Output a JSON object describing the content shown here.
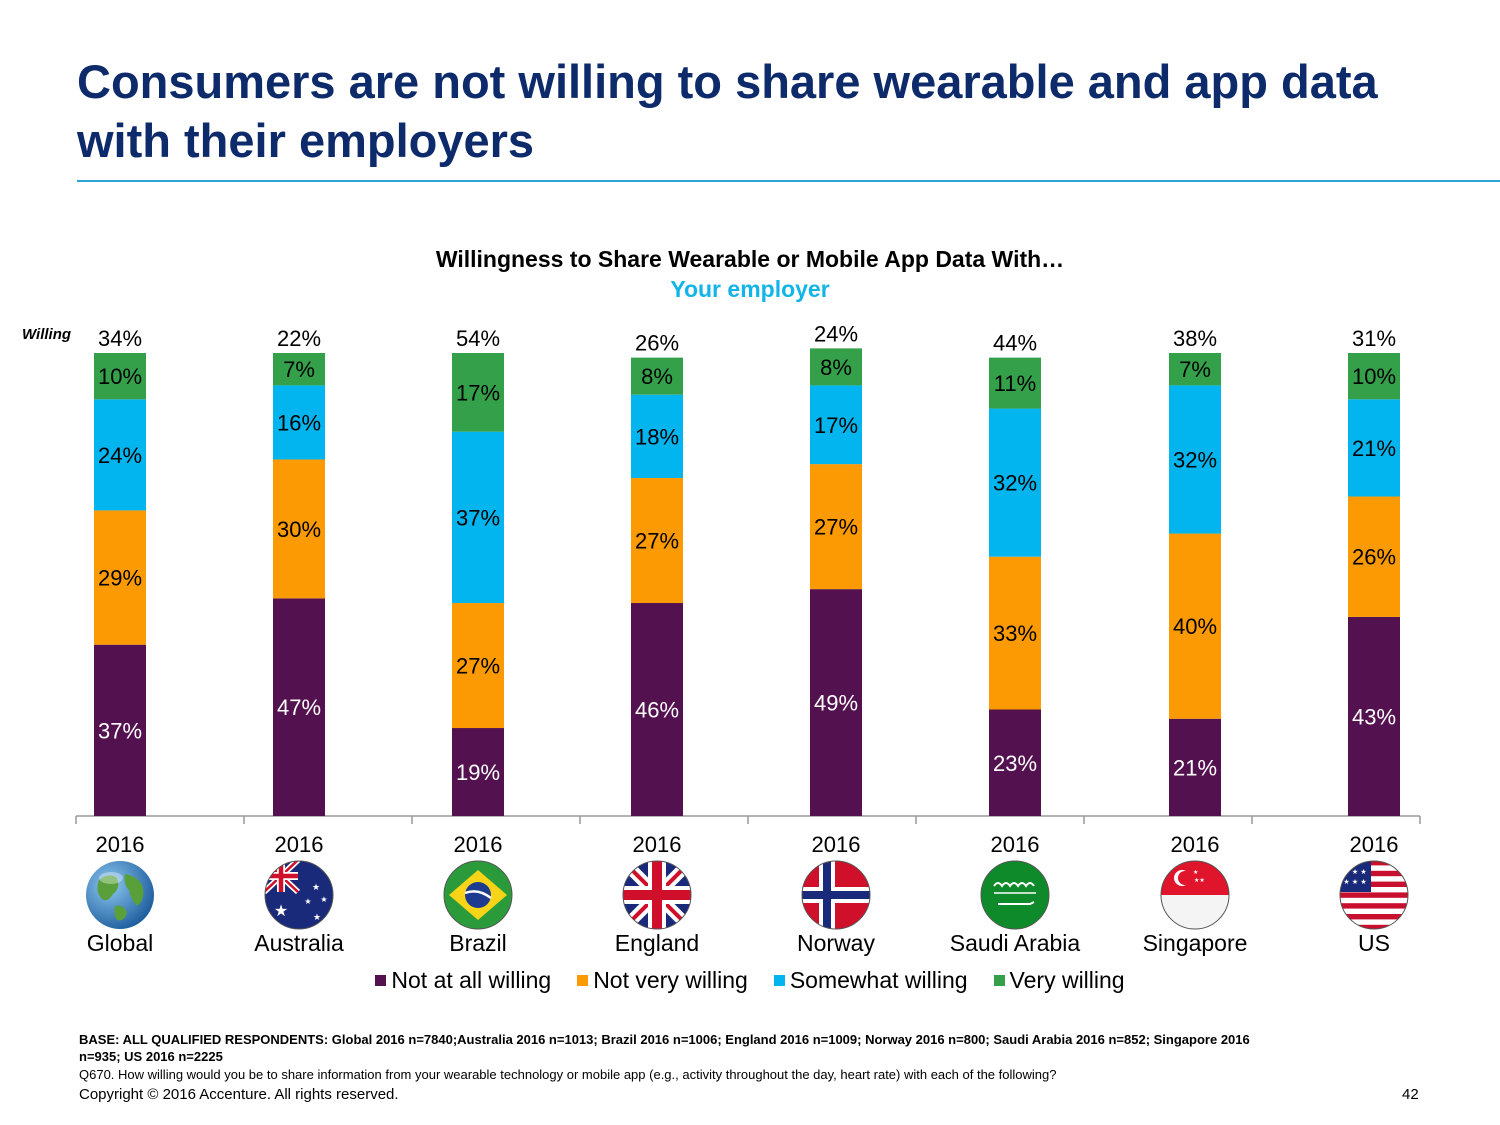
{
  "slide": {
    "title": "Consumers are not willing to share wearable and app data with their employers",
    "willing_label": "Willing",
    "base_note": "BASE: ALL QUALIFIED RESPONDENTS: Global 2016 n=7840;Australia 2016 n=1013; Brazil  2016 n=1006; England  2016 n=1009; Norway  2016 n=800; Saudi Arabia 2016 n=852; Singapore  2016 n=935; US 2016 n=2225",
    "question_note": "Q670.  How willing would you be to share information from your wearable technology or mobile app (e.g., activity throughout the day, heart rate) with each of the following?",
    "copyright": "Copyright © 2016 Accenture. All rights reserved.",
    "page_number": "42"
  },
  "colors": {
    "title": "#0d2a6b",
    "rule": "#2aa5d8",
    "subtitle": "#13b4e8"
  },
  "chart_data": {
    "type": "bar",
    "stacked": true,
    "title": "Willingness to Share Wearable or Mobile App Data With…",
    "subtitle": "Your employer",
    "categories": [
      "2016",
      "2016",
      "2016",
      "2016",
      "2016",
      "2016",
      "2016",
      "2016"
    ],
    "countries": [
      "Global",
      "Australia",
      "Brazil",
      "England",
      "Norway",
      "Saudi Arabia",
      "Singapore",
      "US"
    ],
    "flag_icons": [
      "globe-icon",
      "australia-flag-icon",
      "brazil-flag-icon",
      "england-flag-icon",
      "norway-flag-icon",
      "saudi-arabia-flag-icon",
      "singapore-flag-icon",
      "us-flag-icon"
    ],
    "willing_totals": [
      "34%",
      "22%",
      "54%",
      "26%",
      "24%",
      "44%",
      "38%",
      "31%"
    ],
    "series": [
      {
        "name": "Not at all willing",
        "color": "#53124f",
        "label_color": "#ffffff",
        "values": [
          37,
          47,
          19,
          46,
          49,
          23,
          21,
          43
        ]
      },
      {
        "name": "Not very willing",
        "color": "#fc9a04",
        "label_color": "#000000",
        "values": [
          29,
          30,
          27,
          27,
          27,
          33,
          40,
          26
        ]
      },
      {
        "name": "Somewhat willing",
        "color": "#03b5ee",
        "label_color": "#000000",
        "values": [
          24,
          16,
          37,
          18,
          17,
          32,
          32,
          21
        ]
      },
      {
        "name": "Very willing",
        "color": "#35a04a",
        "label_color": "#000000",
        "values": [
          10,
          7,
          17,
          8,
          8,
          11,
          7,
          10
        ]
      }
    ],
    "unit": "%",
    "ylim": [
      0,
      100
    ],
    "grid": false,
    "legend_position": "bottom"
  }
}
